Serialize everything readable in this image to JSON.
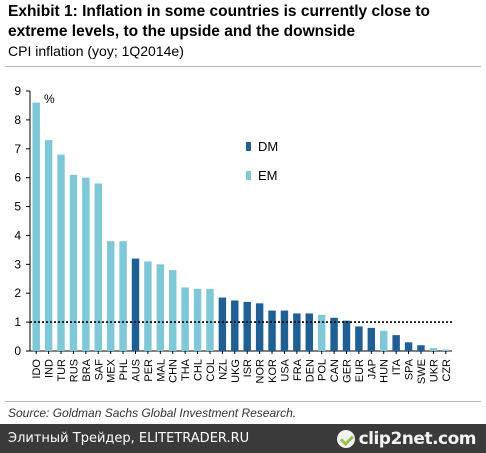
{
  "header": {
    "title": "Exhibit 1: Inflation in some countries is currently close to extreme levels, to the upside and the downside",
    "subtitle": "CPI inflation (yoy; 1Q2014e)"
  },
  "source": "Source: Goldman Sachs Global Investment Research.",
  "footer": {
    "watermark": "Элитный Трейдер, ELITETRADER.RU",
    "logo": "clip2net.com"
  },
  "colors": {
    "DM": "#1f5f94",
    "EM": "#7ec8d8",
    "reference_line": "#000000"
  },
  "chart_data": {
    "type": "bar",
    "unit_label": "%",
    "ylim": [
      0,
      9
    ],
    "yticks": [
      0,
      1,
      2,
      3,
      4,
      5,
      6,
      7,
      8,
      9
    ],
    "grid": false,
    "reference_line": 1,
    "legend_position": "upper-middle",
    "legend": [
      "DM",
      "EM"
    ],
    "categories": [
      "IDO",
      "IND",
      "TUR",
      "RUS",
      "BRA",
      "SAF",
      "MEX",
      "PHL",
      "AUS",
      "PER",
      "MAL",
      "CHN",
      "THA",
      "CHL",
      "COL",
      "NZL",
      "UKG",
      "ISR",
      "NOR",
      "KOR",
      "USA",
      "FRA",
      "DEN",
      "POL",
      "CAN",
      "GER",
      "EUR",
      "JAP",
      "HUN",
      "ITA",
      "SPA",
      "SWE",
      "UKR",
      "CZR"
    ],
    "groups": [
      "EM",
      "EM",
      "EM",
      "EM",
      "EM",
      "EM",
      "EM",
      "EM",
      "DM",
      "EM",
      "EM",
      "EM",
      "EM",
      "EM",
      "EM",
      "DM",
      "DM",
      "DM",
      "DM",
      "DM",
      "DM",
      "DM",
      "DM",
      "EM",
      "DM",
      "DM",
      "DM",
      "DM",
      "EM",
      "DM",
      "DM",
      "DM",
      "EM",
      "EM"
    ],
    "values": [
      8.6,
      7.3,
      6.8,
      6.1,
      6.0,
      5.8,
      3.8,
      3.8,
      3.2,
      3.1,
      3.0,
      2.8,
      2.2,
      2.15,
      2.15,
      1.85,
      1.75,
      1.7,
      1.65,
      1.4,
      1.4,
      1.3,
      1.3,
      1.25,
      1.15,
      1.05,
      0.85,
      0.8,
      0.7,
      0.55,
      0.3,
      0.2,
      0.1,
      0.05
    ]
  }
}
